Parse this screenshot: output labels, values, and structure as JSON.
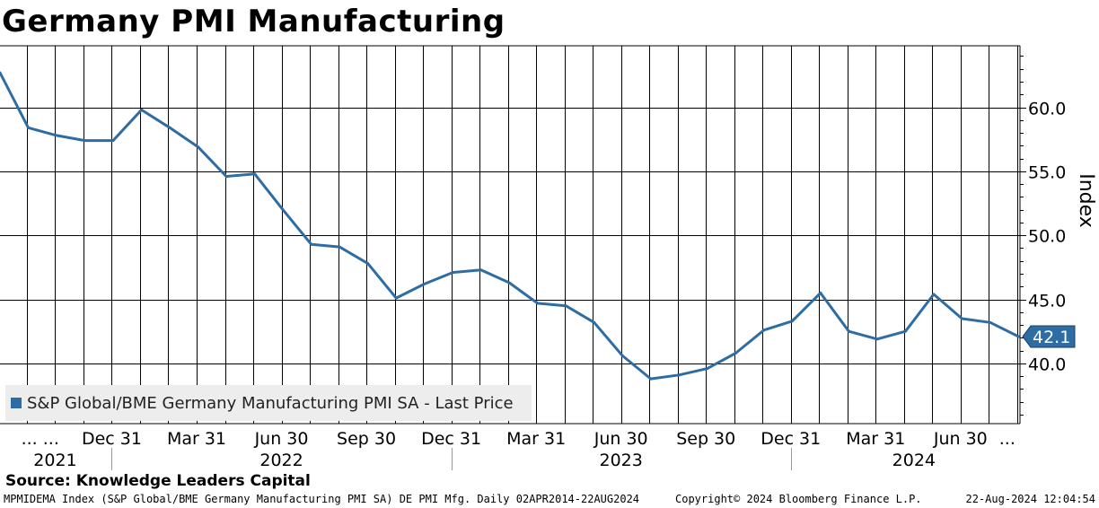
{
  "title": "Germany PMI Manufacturing",
  "source": "Source: Knowledge Leaders Capital",
  "footer": {
    "left": "MPMIDEMA Index (S&P Global/BME Germany Manufacturing PMI SA) DE PMI Mfg.  Daily 02APR2014-22AUG2024",
    "middle": "Copyright© 2024 Bloomberg Finance L.P.",
    "right": "22-Aug-2024 12:04:54"
  },
  "colors": {
    "line": "#2e6da4",
    "grid": "#000000"
  },
  "chart_data": {
    "type": "line",
    "title": "Germany PMI Manufacturing",
    "ylabel": "Index",
    "ylim": [
      35.3,
      64.8
    ],
    "yticks": [
      40.0,
      45.0,
      50.0,
      55.0,
      60.0
    ],
    "ytick_labels": [
      "40.0",
      "45.0",
      "50.0",
      "55.0",
      "60.0"
    ],
    "xlim": [
      0,
      36.05
    ],
    "legend": {
      "label": "S&P Global/BME Germany Manufacturing PMI SA - Last Price",
      "position": "bottom-left"
    },
    "last_value_label": "42.1",
    "x_tick_labels": [
      {
        "label": "... ...",
        "x": 1.42
      },
      {
        "label": "Dec 31",
        "x": 3.95
      },
      {
        "label": "Mar 31",
        "x": 6.95
      },
      {
        "label": "Jun 30",
        "x": 9.95
      },
      {
        "label": "Sep 30",
        "x": 12.95
      },
      {
        "label": "Dec 31",
        "x": 15.95
      },
      {
        "label": "Mar 31",
        "x": 18.95
      },
      {
        "label": "Jun 30",
        "x": 21.95
      },
      {
        "label": "Sep 30",
        "x": 24.95
      },
      {
        "label": "Dec 31",
        "x": 27.95
      },
      {
        "label": "Mar 31",
        "x": 30.95
      },
      {
        "label": "Jun 30",
        "x": 33.95
      },
      {
        "label": "...",
        "x": 35.6
      }
    ],
    "year_labels": [
      {
        "label": "2021",
        "x": 1.95
      },
      {
        "label": "2022",
        "x": 9.95
      },
      {
        "label": "2023",
        "x": 21.95
      },
      {
        "label": "2024",
        "x": 32.3
      }
    ],
    "year_separators": [
      3.95,
      15.95,
      27.95
    ],
    "series": [
      {
        "name": "S&P Global/BME Germany Manufacturing PMI SA - Last Price",
        "x": [
          0,
          1,
          2,
          3,
          4,
          5,
          6,
          7,
          8,
          9,
          10,
          11,
          12,
          13,
          14,
          15,
          16,
          17,
          18,
          19,
          20,
          21,
          22,
          23,
          24,
          25,
          26,
          27,
          28,
          29,
          30,
          31,
          32,
          33,
          34,
          35,
          36
        ],
        "values": [
          62.7,
          58.4,
          57.8,
          57.4,
          57.4,
          59.8,
          58.4,
          56.9,
          54.6,
          54.8,
          52.0,
          49.3,
          49.1,
          47.8,
          45.1,
          46.2,
          47.1,
          47.3,
          46.3,
          44.7,
          44.5,
          43.2,
          40.6,
          38.8,
          39.1,
          39.6,
          40.8,
          42.6,
          43.3,
          45.5,
          42.5,
          41.9,
          42.5,
          45.4,
          43.5,
          43.2,
          42.1
        ]
      }
    ]
  }
}
